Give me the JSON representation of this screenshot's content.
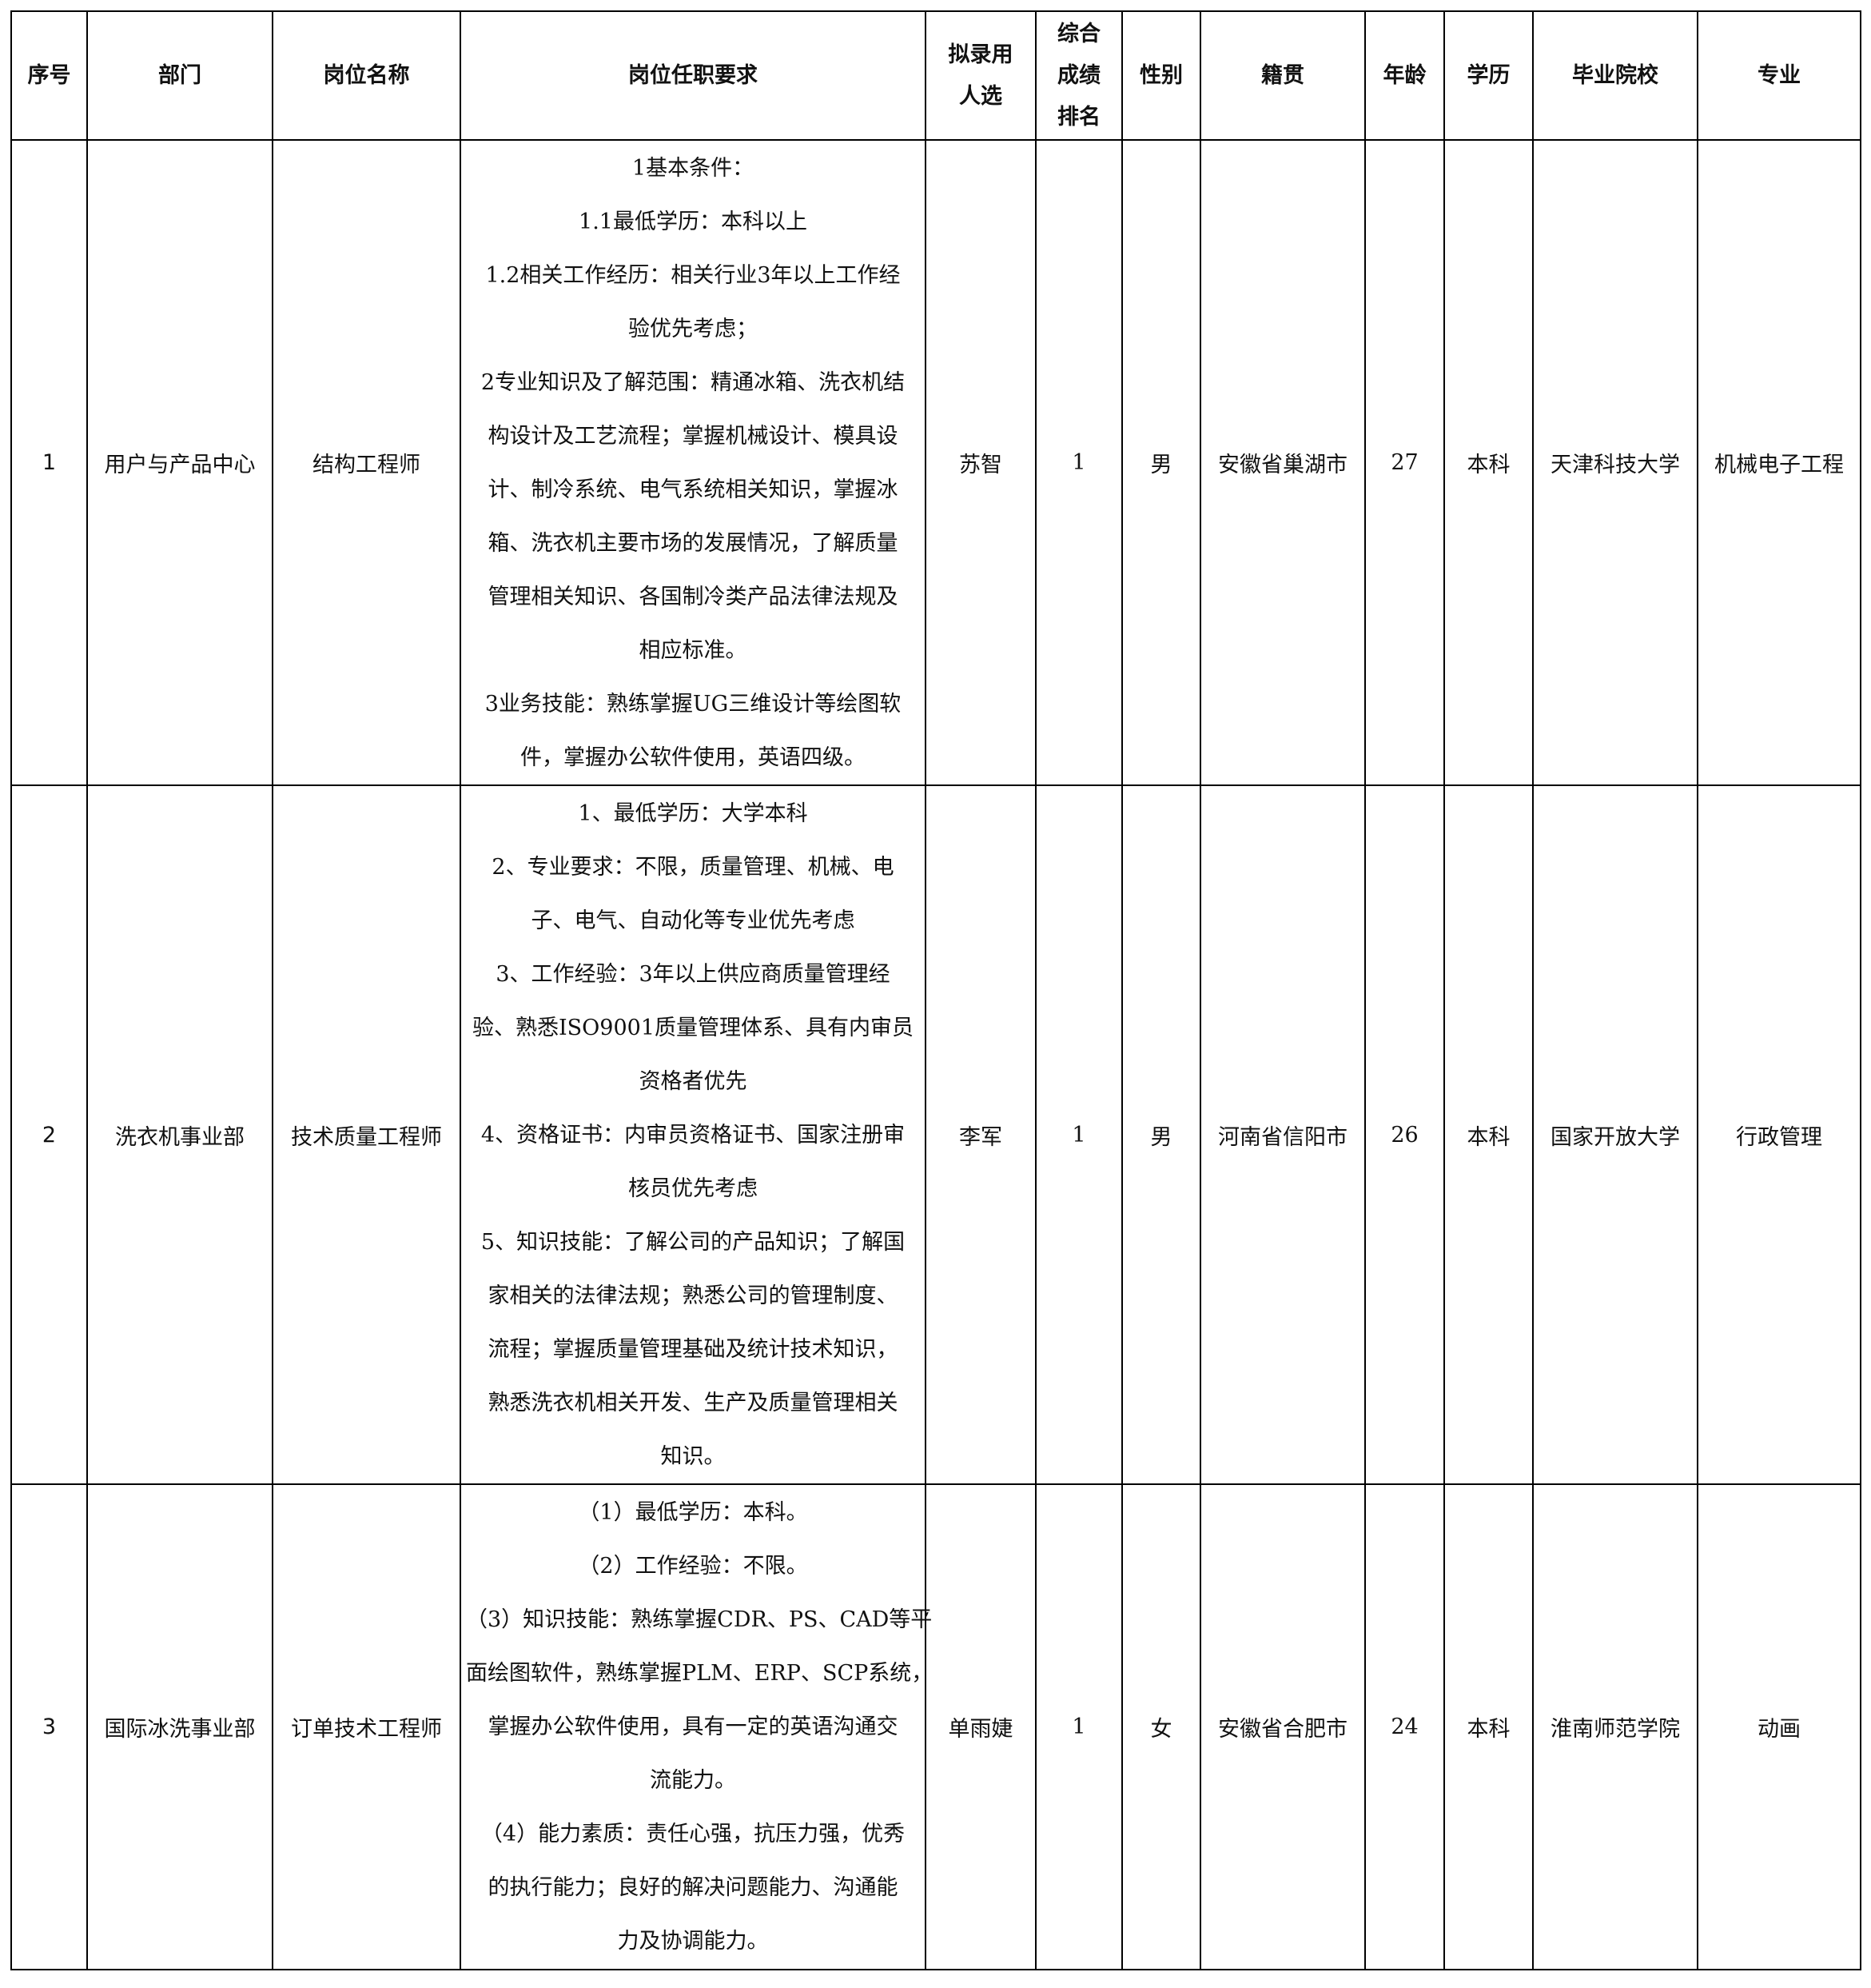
{
  "table": {
    "header": [
      "序号",
      "部门",
      "岗位名称",
      "岗位任职要求",
      "拟录用人选",
      "综合成绩排名",
      "性别",
      "籍贯",
      "年龄",
      "学历",
      "毕业院校",
      "专业"
    ],
    "rows": [
      [
        "1",
        "用户与产品中心",
        "结构工程师",
        [
          "1基本条件：",
          "1.1最低学历：本科以上",
          "1.2相关工作经历：相关行业3年以上工作经",
          "验优先考虑；",
          "2专业知识及了解范围：精通冰箱、洗衣机结",
          "构设计及工艺流程；掌握机械设计、模具设",
          "计、制冷系统、电气系统相关知识，掌握冰",
          "箱、洗衣机主要市场的发展情况，了解质量",
          "管理相关知识、各国制冷类产品法律法规及",
          "相应标准。",
          "3业务技能：熟练掌握UG三维设计等绘图软",
          "件，掌握办公软件使用，英语四级。"
        ],
        "苏智",
        "1",
        "男",
        "安徽省巢湖市",
        "27",
        "本科",
        "天津科技大学",
        "机械电子工程"
      ],
      [
        "2",
        "洗衣机事业部",
        "技术质量工程师",
        [
          "1、最低学历：大学本科",
          "2、专业要求：不限，质量管理、机械、电",
          "子、电气、自动化等专业优先考虑",
          "3、工作经验：3年以上供应商质量管理经",
          "验、熟悉ISO9001质量管理体系、具有内审员",
          "资格者优先",
          "4、资格证书：内审员资格证书、国家注册审",
          "核员优先考虑",
          "5、知识技能：了解公司的产品知识；了解国",
          "家相关的法律法规；熟悉公司的管理制度、",
          "流程；掌握质量管理基础及统计技术知识，",
          "熟悉洗衣机相关开发、生产及质量管理相关",
          "知识。"
        ],
        "李军",
        "1",
        "男",
        "河南省信阳市",
        "26",
        "本科",
        "国家开放大学",
        "行政管理"
      ],
      [
        "3",
        "国际冰洗事业部",
        "订单技术工程师",
        [
          "（1）最低学历：本科。",
          "（2）工作经验：不限。",
          "（3）知识技能：熟练掌握CDR、PS、CAD等平",
          "面绘图软件，熟练掌握PLM、ERP、SCP系统，",
          "掌握办公软件使用，具有一定的英语沟通交",
          "流能力。",
          "（4）能力素质：责任心强，抗压力强，优秀",
          "的执行能力；良好的解决问题能力、沟通能",
          "力及协调能力。"
        ],
        "单雨婕",
        "1",
        "女",
        "安徽省合肥市",
        "24",
        "本科",
        "淮南师范学院",
        "动画"
      ]
    ]
  }
}
